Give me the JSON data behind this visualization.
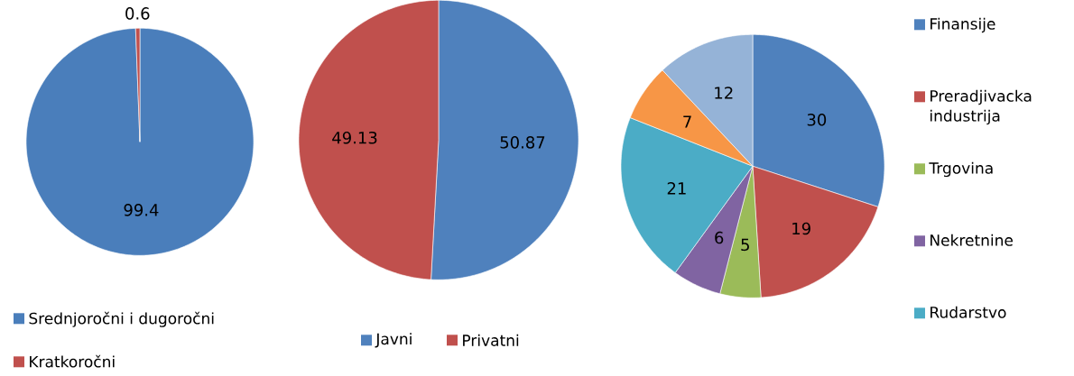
{
  "chart_data": [
    {
      "type": "pie",
      "categories": [
        "Srednjoročni i dugoročni",
        "Kratkoročni"
      ],
      "values": [
        99.4,
        0.6
      ],
      "colors": [
        "#4a7ebb",
        "#c0504d"
      ],
      "data_labels": true,
      "legend": "bottom"
    },
    {
      "type": "pie",
      "categories": [
        "Javni",
        "Privatni"
      ],
      "values": [
        50.87,
        49.13
      ],
      "colors": [
        "#4f81bd",
        "#c0504d"
      ],
      "data_labels": true,
      "legend": "bottom"
    },
    {
      "type": "pie",
      "categories": [
        "Finansije",
        "Preradjivacka industrija",
        "Trgovina",
        "Nekretnine",
        "Rudarstvo",
        null,
        null
      ],
      "values": [
        30,
        19,
        5,
        6,
        21,
        7,
        12
      ],
      "colors": [
        "#4f81bd",
        "#c0504d",
        "#9bbb59",
        "#8064a2",
        "#4bacc6",
        "#f79646",
        "#95b3d7"
      ],
      "data_labels": true,
      "legend": "right"
    }
  ]
}
